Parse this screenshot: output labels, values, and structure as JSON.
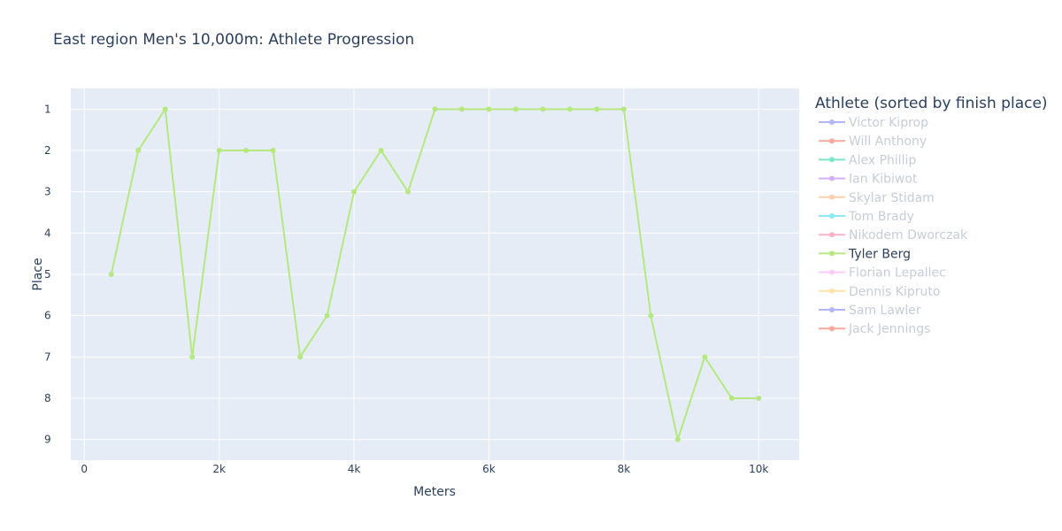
{
  "chart_data": {
    "type": "line",
    "title": "East region Men's 10,000m: Athlete Progression",
    "xlabel": "Meters",
    "ylabel": "Place",
    "xlim": [
      -200,
      10600
    ],
    "ylim": [
      9.5,
      0.5
    ],
    "y_reversed": true,
    "x_ticks": [
      0,
      2000,
      4000,
      6000,
      8000,
      10000
    ],
    "x_tick_labels": [
      "0",
      "2k",
      "4k",
      "6k",
      "8k",
      "10k"
    ],
    "y_ticks": [
      1,
      2,
      3,
      4,
      5,
      6,
      7,
      8,
      9
    ],
    "y_tick_labels": [
      "1",
      "2",
      "3",
      "4",
      "5",
      "6",
      "7",
      "8",
      "9"
    ],
    "grid": true,
    "legend_position": "right",
    "legend_title": "Athlete (sorted by finish place)",
    "series": [
      {
        "name": "Victor Kiprop",
        "color": "#636efa",
        "visible": false,
        "x": [],
        "y": []
      },
      {
        "name": "Will Anthony",
        "color": "#EF553B",
        "visible": false,
        "x": [],
        "y": []
      },
      {
        "name": "Alex Phillip",
        "color": "#00cc96",
        "visible": false,
        "x": [],
        "y": []
      },
      {
        "name": "Ian Kibiwot",
        "color": "#ab63fa",
        "visible": false,
        "x": [],
        "y": []
      },
      {
        "name": "Skylar Stidam",
        "color": "#FFA15A",
        "visible": false,
        "x": [],
        "y": []
      },
      {
        "name": "Tom Brady",
        "color": "#19d3f3",
        "visible": false,
        "x": [],
        "y": []
      },
      {
        "name": "Nikodem Dworczak",
        "color": "#FF6692",
        "visible": false,
        "x": [],
        "y": []
      },
      {
        "name": "Tyler Berg",
        "color": "#B6E880",
        "visible": true,
        "x": [
          400,
          800,
          1200,
          1600,
          2000,
          2400,
          2800,
          3200,
          3600,
          4000,
          4400,
          4800,
          5200,
          5600,
          6000,
          6400,
          6800,
          7200,
          7600,
          8000,
          8400,
          8800,
          9200,
          9600,
          10000
        ],
        "y": [
          5,
          2,
          1,
          7,
          2,
          2,
          2,
          7,
          6,
          3,
          2,
          3,
          1,
          1,
          1,
          1,
          1,
          1,
          1,
          1,
          6,
          9,
          7,
          8,
          8
        ]
      },
      {
        "name": "Florian Lepallec",
        "color": "#FF97FF",
        "visible": false,
        "x": [],
        "y": []
      },
      {
        "name": "Dennis Kipruto",
        "color": "#FECB52",
        "visible": false,
        "x": [],
        "y": []
      },
      {
        "name": "Sam Lawler",
        "color": "#636efa",
        "visible": false,
        "x": [],
        "y": []
      },
      {
        "name": "Jack Jennings",
        "color": "#EF553B",
        "visible": false,
        "x": [],
        "y": []
      }
    ]
  },
  "colors": {
    "plot_bg": "#e5ecf6",
    "grid": "#ffffff",
    "text": "#2a3f5f",
    "legend_inactive_text": "#8e9bb0"
  }
}
